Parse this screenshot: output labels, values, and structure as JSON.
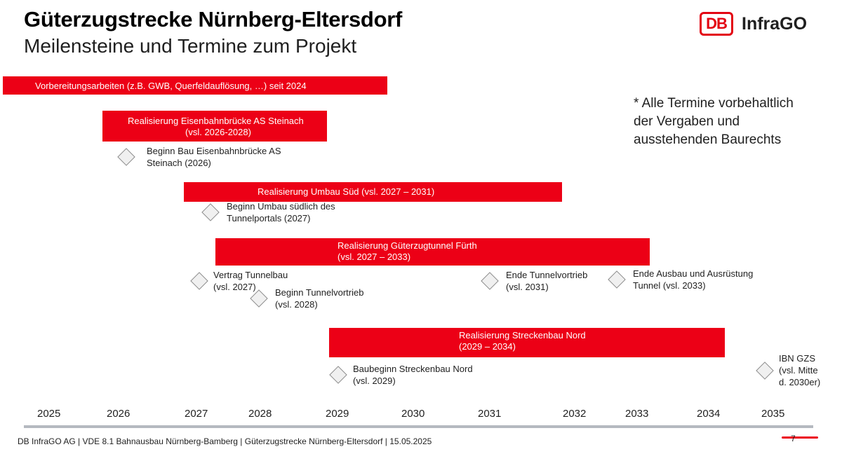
{
  "header": {
    "title": "Güterzugstrecke Nürnberg-Eltersdorf",
    "subtitle": "Meilensteine und Termine zum Projekt"
  },
  "logo": {
    "mark": "DB",
    "text": "InfraGO",
    "brand_color": "#ec0016"
  },
  "note": [
    "* Alle Termine vorbehaltlich",
    "der Vergaben und",
    "ausstehenden Baurechts"
  ],
  "bars": [
    {
      "lines": [
        "Vorbereitungsarbeiten (z.B. GWB, Querfeldauflösung, …) seit 2024"
      ]
    },
    {
      "lines": [
        "Realisierung Eisenbahnbrücke  AS Steinach",
        "(vsl. 2026-2028)"
      ]
    },
    {
      "lines": [
        "Realisierung Umbau Süd (vsl. 2027 – 2031)"
      ]
    },
    {
      "lines": [
        "Realisierung Güterzugtunnel Fürth",
        "(vsl. 2027 – 2033)"
      ]
    },
    {
      "lines": [
        "Realisierung Streckenbau Nord",
        "(2029 – 2034)"
      ]
    }
  ],
  "milestones": [
    {
      "lines": [
        "Beginn Bau Eisenbahnbrücke AS",
        "Steinach (2026)"
      ]
    },
    {
      "lines": [
        "Beginn Umbau südlich des",
        "Tunnelportals (2027)"
      ]
    },
    {
      "lines": [
        "Vertrag Tunnelbau",
        "(vsl. 2027)"
      ]
    },
    {
      "lines": [
        "Beginn Tunnelvortrieb",
        "(vsl. 2028)"
      ]
    },
    {
      "lines": [
        "Ende Tunnelvortrieb",
        "(vsl. 2031)"
      ]
    },
    {
      "lines": [
        "Ende Ausbau und Ausrüstung",
        "Tunnel (vsl. 2033)"
      ]
    },
    {
      "lines": [
        "Baubeginn Streckenbau Nord",
        "(vsl. 2029)"
      ]
    },
    {
      "lines": [
        "IBN GZS",
        "(vsl. Mitte",
        "d. 2030er)"
      ]
    }
  ],
  "years": [
    "2025",
    "2026",
    "2027",
    "2028",
    "2029",
    "2030",
    "2031",
    "2032",
    "2033",
    "2034",
    "2035"
  ],
  "footer": {
    "text": "DB InfraGO AG | VDE 8.1 Bahnausbau Nürnberg-Bamberg | Güterzugstrecke Nürnberg-Eltersdorf | 15.05.2025",
    "page": "7"
  }
}
